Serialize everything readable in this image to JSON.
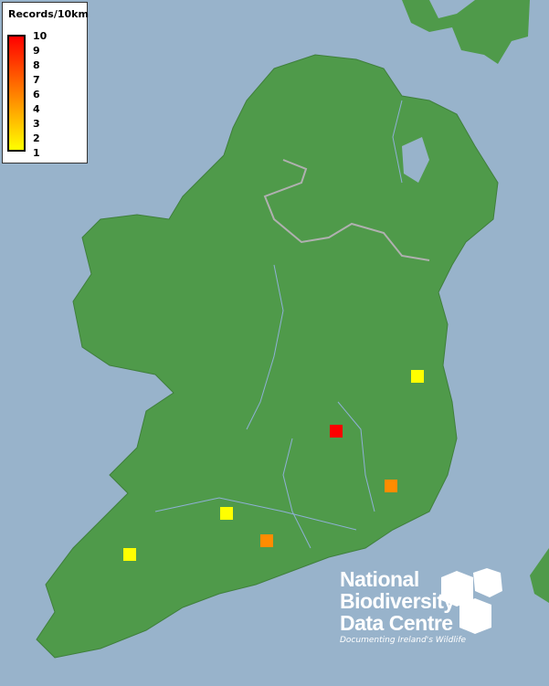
{
  "legend": {
    "title": "Records/10km",
    "ticks": [
      "10",
      "9",
      "8",
      "7",
      "6",
      "4",
      "3",
      "2",
      "1"
    ],
    "color_low": "#ffff00",
    "color_high": "#ff0000"
  },
  "records": [
    {
      "value": 10,
      "color": "#ff0000"
    },
    {
      "value": 6,
      "color": "#ff8c00"
    },
    {
      "value": 6,
      "color": "#ff8c00"
    },
    {
      "value": 1,
      "color": "#ffff00"
    },
    {
      "value": 1,
      "color": "#ffff00"
    },
    {
      "value": 1,
      "color": "#ffff00"
    }
  ],
  "logo": {
    "line1": "National",
    "line2": "Biodiversity",
    "line3": "Data Centre",
    "tagline": "Documenting Ireland's Wildlife"
  },
  "colors": {
    "sea": "#98b3cb",
    "land": "#4f9a4a"
  }
}
